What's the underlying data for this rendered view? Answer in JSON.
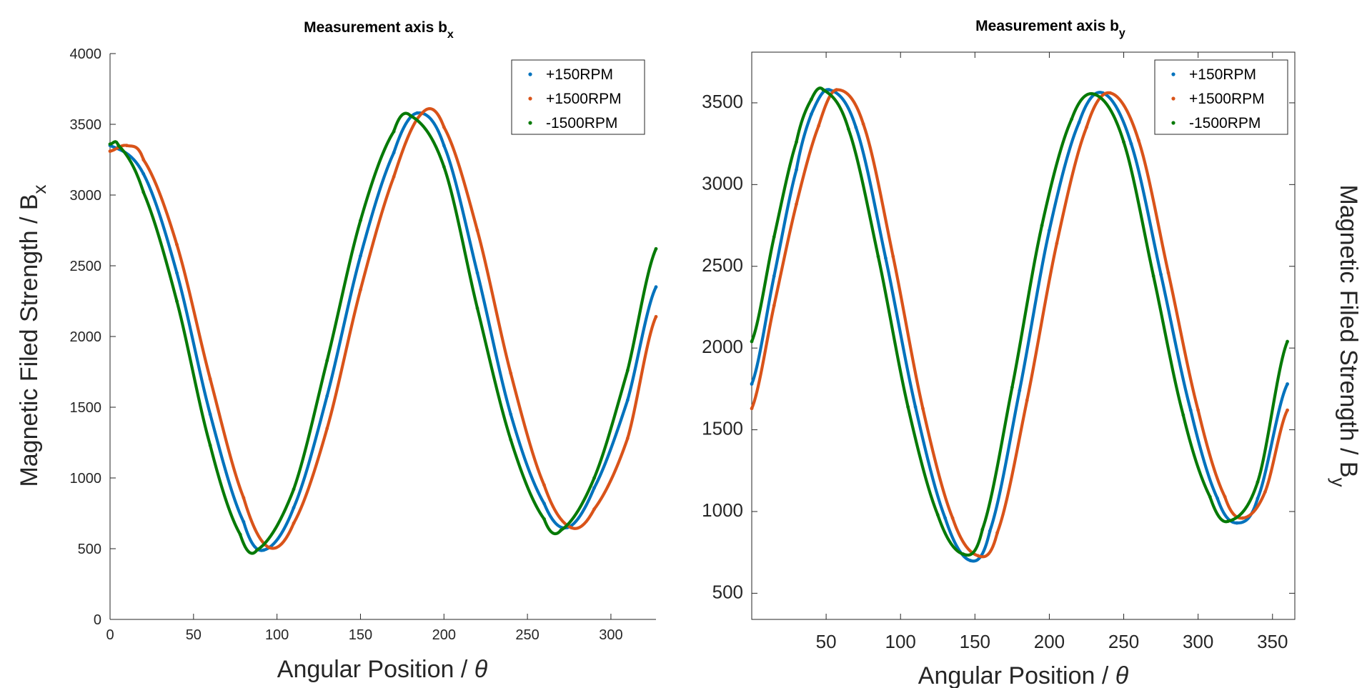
{
  "chart_data": [
    {
      "type": "scatter",
      "title": "Measurement axis b",
      "title_subscript": "x",
      "xlabel": "Angular Position / ",
      "xlabel_symbol": "θ",
      "ylabel": "Magnetic Filed Strength / B",
      "ylabel_subscript": "x",
      "xlim": [
        0,
        327
      ],
      "ylim": [
        0,
        4000
      ],
      "xticks": [
        0,
        50,
        100,
        150,
        200,
        250,
        300
      ],
      "yticks": [
        0,
        500,
        1000,
        1500,
        2000,
        2500,
        3000,
        3500,
        4000
      ],
      "box": false,
      "legend_position": "top-right",
      "series": [
        {
          "name": "+150RPM",
          "color": "#0072BD",
          "x": [
            0,
            20,
            40,
            60,
            80,
            92,
            110,
            130,
            150,
            170,
            184,
            200,
            220,
            240,
            260,
            274,
            290,
            310,
            327
          ],
          "y": [
            3350,
            3150,
            2450,
            1450,
            690,
            490,
            790,
            1580,
            2570,
            3300,
            3580,
            3350,
            2450,
            1450,
            820,
            650,
            930,
            1550,
            2350
          ]
        },
        {
          "name": "+1500RPM",
          "color": "#D95319",
          "x": [
            0,
            10,
            20,
            40,
            60,
            80,
            95,
            110,
            130,
            150,
            170,
            187,
            200,
            220,
            240,
            260,
            276,
            290,
            310,
            327
          ],
          "y": [
            3310,
            3350,
            3250,
            2650,
            1700,
            860,
            510,
            680,
            1350,
            2330,
            3130,
            3580,
            3480,
            2750,
            1740,
            950,
            650,
            780,
            1280,
            2140
          ]
        },
        {
          "name": "-1500RPM",
          "color": "#077A07",
          "x": [
            0,
            5,
            20,
            40,
            60,
            78,
            88,
            110,
            130,
            150,
            170,
            180,
            200,
            220,
            240,
            260,
            270,
            290,
            310,
            327
          ],
          "y": [
            3360,
            3350,
            3020,
            2250,
            1230,
            600,
            490,
            920,
            1830,
            2820,
            3450,
            3560,
            3200,
            2200,
            1270,
            710,
            630,
            1000,
            1760,
            2620
          ]
        }
      ]
    },
    {
      "type": "scatter",
      "title": "Measurement axis b",
      "title_subscript": "y",
      "xlabel": "Angular Position / ",
      "xlabel_symbol": "θ",
      "ylabel": "Magnetic Filed Strength / B",
      "ylabel_subscript": "y",
      "xlim": [
        0,
        365
      ],
      "ylim": [
        340,
        3810
      ],
      "xticks": [
        50,
        100,
        150,
        200,
        250,
        300,
        350
      ],
      "yticks": [
        500,
        1000,
        1500,
        2000,
        2500,
        3000,
        3500
      ],
      "box": true,
      "legend_position": "top-right",
      "series": [
        {
          "name": "+150RPM",
          "color": "#0072BD",
          "x": [
            0,
            15,
            30,
            40,
            52,
            70,
            90,
            110,
            130,
            147,
            160,
            180,
            200,
            220,
            236,
            255,
            275,
            295,
            313,
            326,
            340,
            360
          ],
          "y": [
            1780,
            2440,
            3090,
            3430,
            3580,
            3350,
            2550,
            1640,
            960,
            700,
            880,
            1740,
            2720,
            3380,
            3560,
            3250,
            2450,
            1620,
            1080,
            930,
            1080,
            1780
          ]
        },
        {
          "name": "+1500RPM",
          "color": "#D95319",
          "x": [
            0,
            15,
            30,
            45,
            57,
            75,
            95,
            115,
            135,
            152,
            165,
            185,
            205,
            225,
            241,
            260,
            280,
            300,
            318,
            330,
            345,
            360
          ],
          "y": [
            1630,
            2260,
            2880,
            3360,
            3580,
            3370,
            2560,
            1630,
            960,
            730,
            870,
            1680,
            2640,
            3350,
            3560,
            3270,
            2460,
            1620,
            1090,
            960,
            1120,
            1620
          ]
        },
        {
          "name": "-1500RPM",
          "color": "#077A07",
          "x": [
            0,
            15,
            30,
            40,
            48,
            65,
            85,
            105,
            125,
            142,
            155,
            175,
            195,
            215,
            231,
            250,
            270,
            290,
            308,
            320,
            340,
            360
          ],
          "y": [
            2040,
            2680,
            3260,
            3520,
            3580,
            3340,
            2560,
            1640,
            980,
            740,
            890,
            1760,
            2750,
            3400,
            3550,
            3260,
            2440,
            1590,
            1090,
            940,
            1180,
            2040
          ]
        }
      ]
    }
  ]
}
